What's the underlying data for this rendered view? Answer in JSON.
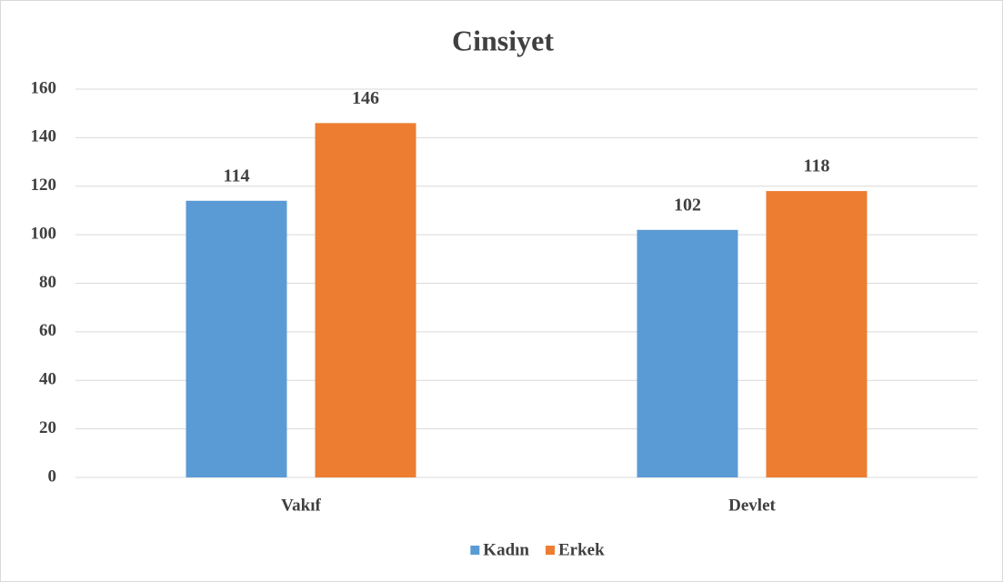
{
  "chart_data": {
    "type": "bar",
    "title": "Cinsiyet",
    "categories": [
      "Vakıf",
      "Devlet"
    ],
    "series": [
      {
        "name": "Kadın",
        "color": "#5b9bd5",
        "values": [
          114,
          102
        ]
      },
      {
        "name": "Erkek",
        "color": "#ed7d31",
        "values": [
          146,
          118
        ]
      }
    ],
    "ylim": [
      0,
      160
    ],
    "yticks": [
      0,
      20,
      40,
      60,
      80,
      100,
      120,
      140,
      160
    ],
    "grid": true,
    "legend": "bottom"
  }
}
